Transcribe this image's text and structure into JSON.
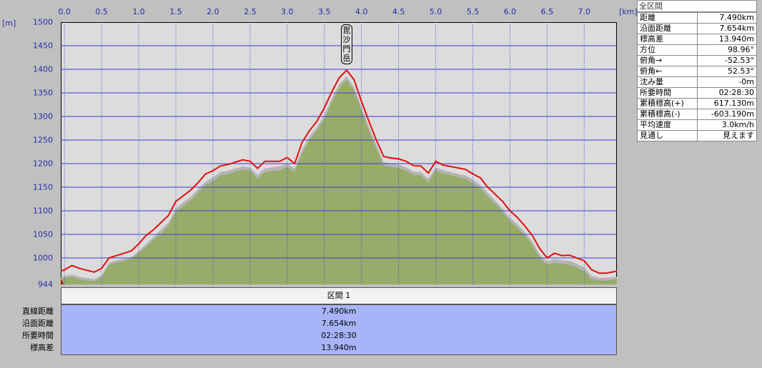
{
  "chart_data": {
    "type": "area",
    "xlabel_unit": "[km]",
    "ylabel_unit": "[m]",
    "xlim": [
      -0.05,
      7.44
    ],
    "ylim": [
      944,
      1500
    ],
    "x_ticks": [
      "0.0",
      "0.5",
      "1.0",
      "1.5",
      "2.0",
      "2.5",
      "3.0",
      "3.5",
      "4.0",
      "4.5",
      "5.0",
      "5.5",
      "6.0",
      "6.5",
      "7.0"
    ],
    "y_ticks": [
      "1500",
      "1450",
      "1400",
      "1350",
      "1300",
      "1250",
      "1200",
      "1150",
      "1100",
      "1050",
      "1000",
      "944"
    ],
    "grid": true,
    "annotation": "毘沙門岳",
    "annotation_x": 3.8,
    "series": [
      {
        "style": "red-line",
        "color": "#e01010",
        "x": [
          -0.05,
          0.0,
          0.1,
          0.2,
          0.3,
          0.4,
          0.5,
          0.6,
          0.7,
          0.8,
          0.9,
          1.0,
          1.1,
          1.2,
          1.3,
          1.4,
          1.5,
          1.6,
          1.7,
          1.8,
          1.9,
          2.0,
          2.1,
          2.2,
          2.3,
          2.4,
          2.5,
          2.6,
          2.7,
          2.8,
          2.9,
          3.0,
          3.1,
          3.2,
          3.3,
          3.4,
          3.5,
          3.6,
          3.7,
          3.8,
          3.9,
          4.0,
          4.1,
          4.2,
          4.3,
          4.4,
          4.5,
          4.6,
          4.7,
          4.8,
          4.9,
          5.0,
          5.1,
          5.2,
          5.3,
          5.4,
          5.5,
          5.6,
          5.7,
          5.8,
          5.9,
          6.0,
          6.1,
          6.2,
          6.3,
          6.4,
          6.5,
          6.6,
          6.7,
          6.8,
          6.9,
          7.0,
          7.1,
          7.2,
          7.3,
          7.44
        ],
        "y": [
          972,
          975,
          984,
          978,
          974,
          970,
          978,
          1000,
          1005,
          1010,
          1015,
          1030,
          1048,
          1060,
          1075,
          1090,
          1120,
          1132,
          1144,
          1160,
          1178,
          1185,
          1195,
          1198,
          1203,
          1208,
          1205,
          1190,
          1205,
          1205,
          1205,
          1213,
          1200,
          1245,
          1270,
          1290,
          1318,
          1352,
          1382,
          1398,
          1378,
          1332,
          1290,
          1250,
          1215,
          1212,
          1210,
          1205,
          1196,
          1195,
          1180,
          1205,
          1197,
          1194,
          1191,
          1188,
          1178,
          1170,
          1150,
          1135,
          1120,
          1100,
          1086,
          1068,
          1048,
          1020,
          1000,
          1010,
          1005,
          1006,
          1000,
          994,
          975,
          968,
          968,
          972
        ]
      },
      {
        "style": "grey-ground",
        "color": "#b4b4b4",
        "x": [
          -0.05,
          0.0,
          0.1,
          0.2,
          0.3,
          0.4,
          0.5,
          0.6,
          0.7,
          0.8,
          0.9,
          1.0,
          1.1,
          1.2,
          1.3,
          1.4,
          1.5,
          1.6,
          1.7,
          1.8,
          1.9,
          2.0,
          2.1,
          2.2,
          2.3,
          2.4,
          2.5,
          2.6,
          2.7,
          2.8,
          2.9,
          3.0,
          3.1,
          3.2,
          3.3,
          3.4,
          3.5,
          3.6,
          3.7,
          3.8,
          3.9,
          4.0,
          4.1,
          4.2,
          4.3,
          4.4,
          4.5,
          4.6,
          4.7,
          4.8,
          4.9,
          5.0,
          5.1,
          5.2,
          5.3,
          5.4,
          5.5,
          5.6,
          5.7,
          5.8,
          5.9,
          6.0,
          6.1,
          6.2,
          6.3,
          6.4,
          6.5,
          6.6,
          6.7,
          6.8,
          6.9,
          7.0,
          7.1,
          7.2,
          7.3,
          7.44
        ],
        "y": [
          958,
          962,
          965,
          960,
          958,
          955,
          963,
          990,
          995,
          998,
          1002,
          1015,
          1030,
          1045,
          1060,
          1075,
          1105,
          1118,
          1130,
          1146,
          1162,
          1170,
          1182,
          1185,
          1190,
          1194,
          1192,
          1176,
          1190,
          1192,
          1194,
          1200,
          1190,
          1230,
          1258,
          1278,
          1302,
          1338,
          1368,
          1385,
          1362,
          1320,
          1278,
          1240,
          1203,
          1200,
          1198,
          1192,
          1183,
          1182,
          1168,
          1192,
          1186,
          1182,
          1178,
          1175,
          1166,
          1155,
          1138,
          1122,
          1105,
          1085,
          1072,
          1055,
          1035,
          1008,
          992,
          998,
          995,
          994,
          988,
          980,
          962,
          958,
          958,
          960
        ]
      },
      {
        "style": "green-fill",
        "color": "#98ac6a",
        "x": [
          -0.05,
          0.0,
          0.1,
          0.2,
          0.3,
          0.4,
          0.5,
          0.6,
          0.7,
          0.8,
          0.9,
          1.0,
          1.1,
          1.2,
          1.3,
          1.4,
          1.5,
          1.6,
          1.7,
          1.8,
          1.9,
          2.0,
          2.1,
          2.2,
          2.3,
          2.4,
          2.5,
          2.6,
          2.7,
          2.8,
          2.9,
          3.0,
          3.1,
          3.2,
          3.3,
          3.4,
          3.5,
          3.6,
          3.7,
          3.8,
          3.9,
          4.0,
          4.1,
          4.2,
          4.3,
          4.4,
          4.5,
          4.6,
          4.7,
          4.8,
          4.9,
          5.0,
          5.1,
          5.2,
          5.3,
          5.4,
          5.5,
          5.6,
          5.7,
          5.8,
          5.9,
          6.0,
          6.1,
          6.2,
          6.3,
          6.4,
          6.5,
          6.6,
          6.7,
          6.8,
          6.9,
          7.0,
          7.1,
          7.2,
          7.3,
          7.44
        ],
        "y": [
          955,
          958,
          960,
          955,
          952,
          950,
          958,
          985,
          990,
          994,
          998,
          1010,
          1024,
          1038,
          1052,
          1068,
          1098,
          1110,
          1122,
          1138,
          1155,
          1162,
          1175,
          1178,
          1183,
          1187,
          1185,
          1168,
          1182,
          1184,
          1186,
          1193,
          1183,
          1222,
          1250,
          1270,
          1295,
          1330,
          1360,
          1378,
          1355,
          1312,
          1270,
          1232,
          1196,
          1193,
          1191,
          1185,
          1176,
          1175,
          1160,
          1185,
          1179,
          1175,
          1171,
          1168,
          1158,
          1148,
          1130,
          1115,
          1098,
          1078,
          1064,
          1048,
          1028,
          1000,
          985,
          990,
          988,
          986,
          980,
          972,
          955,
          952,
          952,
          955
        ]
      }
    ]
  },
  "summary": {
    "title": "全区間",
    "rows": [
      {
        "label": "距離",
        "value": "7.490km"
      },
      {
        "label": "沿面距離",
        "value": "7.654km"
      },
      {
        "label": "標高差",
        "value": "13.940m"
      },
      {
        "label": "方位",
        "value": "98.96°"
      },
      {
        "label": "俯角→",
        "value": "-52.53°"
      },
      {
        "label": "俯角←",
        "value": "52.53°"
      },
      {
        "label": "沈み量",
        "value": "-0m"
      },
      {
        "label": "所要時間",
        "value": "02:28:30"
      },
      {
        "label": "累積標高(+)",
        "value": "617.130m"
      },
      {
        "label": "累積標高(-)",
        "value": "-603.190m"
      },
      {
        "label": "平均速度",
        "value": "3.0km/h"
      },
      {
        "label": "見通し",
        "value": "見えます"
      }
    ]
  },
  "section": {
    "header": "区間 1",
    "rows": [
      {
        "label": "直線距離",
        "value": "7.490km"
      },
      {
        "label": "沿面距離",
        "value": "7.654km"
      },
      {
        "label": "所要時間",
        "value": "02:28:30"
      },
      {
        "label": "標高差",
        "value": "13.940m"
      }
    ]
  }
}
